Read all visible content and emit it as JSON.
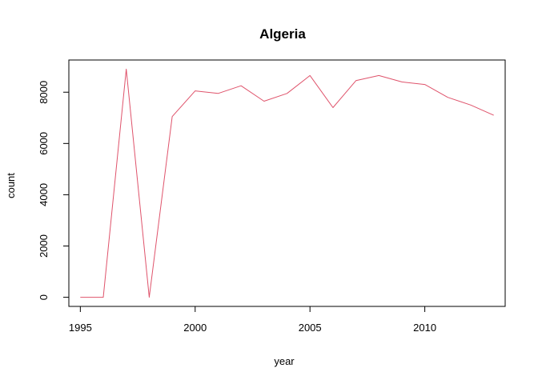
{
  "chart_data": {
    "type": "line",
    "title": "Algeria",
    "xlabel": "year",
    "ylabel": "count",
    "x": [
      1995,
      1996,
      1997,
      1998,
      1999,
      2000,
      2001,
      2002,
      2003,
      2004,
      2005,
      2006,
      2007,
      2008,
      2009,
      2010,
      2011,
      2012,
      2013
    ],
    "series": [
      {
        "values": [
          0,
          0,
          8900,
          0,
          7050,
          8050,
          7950,
          8250,
          7650,
          7950,
          8650,
          7400,
          8450,
          8650,
          8400,
          8300,
          7800,
          7500,
          7100
        ],
        "color": "#DF536B"
      }
    ],
    "xlim": [
      1994.5,
      2013.5
    ],
    "ylim": [
      -356,
      9256
    ],
    "xticks": [
      1995,
      2000,
      2005,
      2010
    ],
    "yticks": [
      0,
      2000,
      4000,
      6000,
      8000
    ],
    "grid": false,
    "legend": "none"
  }
}
